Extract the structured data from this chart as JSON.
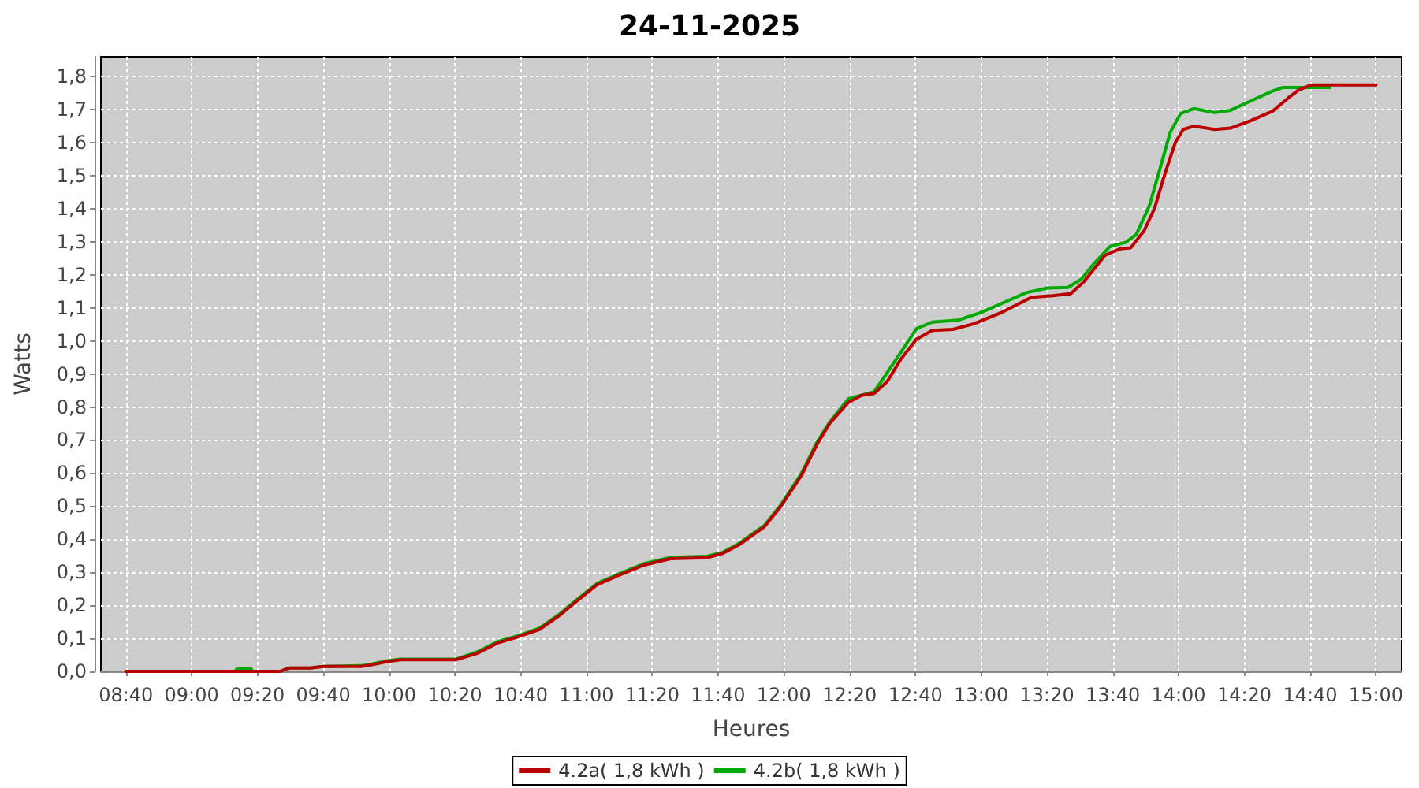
{
  "chart_data": {
    "type": "line",
    "title": "24-11-2025",
    "xlabel": "Heures",
    "ylabel": "Watts",
    "xlim": [
      8.54,
      15.13
    ],
    "ylim": [
      0,
      1.86
    ],
    "xticks": [
      {
        "value": 8.6667,
        "label": "08:40"
      },
      {
        "value": 9,
        "label": "09:00"
      },
      {
        "value": 9.3333,
        "label": "09:20"
      },
      {
        "value": 9.6667,
        "label": "09:40"
      },
      {
        "value": 10,
        "label": "10:00"
      },
      {
        "value": 10.3333,
        "label": "10:20"
      },
      {
        "value": 10.6667,
        "label": "10:40"
      },
      {
        "value": 11,
        "label": "11:00"
      },
      {
        "value": 11.3333,
        "label": "11:20"
      },
      {
        "value": 11.6667,
        "label": "11:40"
      },
      {
        "value": 12,
        "label": "12:00"
      },
      {
        "value": 12.3333,
        "label": "12:20"
      },
      {
        "value": 12.6667,
        "label": "12:40"
      },
      {
        "value": 13,
        "label": "13:00"
      },
      {
        "value": 13.3333,
        "label": "13:20"
      },
      {
        "value": 13.6667,
        "label": "13:40"
      },
      {
        "value": 14,
        "label": "14:00"
      },
      {
        "value": 14.3333,
        "label": "14:20"
      },
      {
        "value": 14.6667,
        "label": "14:40"
      },
      {
        "value": 15,
        "label": "15:00"
      }
    ],
    "yticks": [
      {
        "value": 0,
        "label": "0,0"
      },
      {
        "value": 0.1,
        "label": "0,1"
      },
      {
        "value": 0.2,
        "label": "0,2"
      },
      {
        "value": 0.3,
        "label": "0,3"
      },
      {
        "value": 0.4,
        "label": "0,4"
      },
      {
        "value": 0.5,
        "label": "0,5"
      },
      {
        "value": 0.6,
        "label": "0,6"
      },
      {
        "value": 0.7,
        "label": "0,7"
      },
      {
        "value": 0.8,
        "label": "0,8"
      },
      {
        "value": 0.9,
        "label": "0,9"
      },
      {
        "value": 1.0,
        "label": "1,0"
      },
      {
        "value": 1.1,
        "label": "1,1"
      },
      {
        "value": 1.2,
        "label": "1,2"
      },
      {
        "value": 1.3,
        "label": "1,3"
      },
      {
        "value": 1.4,
        "label": "1,4"
      },
      {
        "value": 1.5,
        "label": "1,5"
      },
      {
        "value": 1.6,
        "label": "1,6"
      },
      {
        "value": 1.7,
        "label": "1,7"
      },
      {
        "value": 1.8,
        "label": "1,8"
      }
    ],
    "grid": true,
    "legend": "bottom",
    "series": [
      {
        "name": "4.2a( 1,8 kWh )",
        "color": "#bb0000",
        "x": [
          8.667,
          9.45,
          9.49,
          9.6,
          9.667,
          9.86,
          9.913,
          9.992,
          10.058,
          10.338,
          10.443,
          10.55,
          10.655,
          10.762,
          10.867,
          10.947,
          11.053,
          11.16,
          11.292,
          11.425,
          11.61,
          11.69,
          11.77,
          11.902,
          11.982,
          12.088,
          12.168,
          12.233,
          12.327,
          12.393,
          12.458,
          12.525,
          12.592,
          12.672,
          12.752,
          12.857,
          12.963,
          13.095,
          13.255,
          13.362,
          13.453,
          13.52,
          13.627,
          13.705,
          13.758,
          13.825,
          13.878,
          13.93,
          13.983,
          14.023,
          14.077,
          14.183,
          14.263,
          14.368,
          14.475,
          14.555,
          14.607,
          14.673,
          15.0
        ],
        "values": [
          0,
          0,
          0.01,
          0.01,
          0.015,
          0.015,
          0.02,
          0.03,
          0.035,
          0.035,
          0.054,
          0.086,
          0.105,
          0.127,
          0.171,
          0.211,
          0.262,
          0.29,
          0.322,
          0.341,
          0.344,
          0.357,
          0.382,
          0.438,
          0.497,
          0.592,
          0.687,
          0.751,
          0.814,
          0.835,
          0.841,
          0.878,
          0.944,
          1.005,
          1.032,
          1.035,
          1.052,
          1.084,
          1.132,
          1.137,
          1.143,
          1.179,
          1.259,
          1.279,
          1.282,
          1.333,
          1.401,
          1.505,
          1.6,
          1.64,
          1.65,
          1.64,
          1.644,
          1.667,
          1.695,
          1.735,
          1.759,
          1.775,
          1.775
        ]
      },
      {
        "name": "4.2b( 1,8 kWh )",
        "color": "#00aa00",
        "x": [
          8.667,
          9.22,
          9.23,
          9.3,
          9.31,
          9.45,
          9.49,
          9.6,
          9.667,
          9.86,
          9.913,
          9.992,
          10.058,
          10.338,
          10.443,
          10.55,
          10.655,
          10.762,
          10.867,
          10.947,
          11.053,
          11.16,
          11.292,
          11.425,
          11.61,
          11.69,
          11.77,
          11.902,
          11.982,
          12.088,
          12.168,
          12.233,
          12.327,
          12.458,
          12.592,
          12.672,
          12.752,
          12.883,
          12.99,
          13.095,
          13.228,
          13.335,
          13.44,
          13.507,
          13.573,
          13.653,
          13.732,
          13.785,
          13.852,
          13.905,
          13.958,
          14.01,
          14.077,
          14.183,
          14.263,
          14.368,
          14.475,
          14.528,
          14.767
        ],
        "values": [
          0,
          0,
          0.008,
          0.008,
          0,
          0,
          0.01,
          0.01,
          0.015,
          0.017,
          0.022,
          0.032,
          0.037,
          0.037,
          0.058,
          0.09,
          0.108,
          0.131,
          0.175,
          0.215,
          0.266,
          0.294,
          0.326,
          0.345,
          0.348,
          0.36,
          0.386,
          0.442,
          0.502,
          0.598,
          0.694,
          0.755,
          0.825,
          0.846,
          0.965,
          1.037,
          1.057,
          1.063,
          1.084,
          1.111,
          1.146,
          1.16,
          1.162,
          1.187,
          1.235,
          1.286,
          1.298,
          1.322,
          1.409,
          1.52,
          1.632,
          1.688,
          1.703,
          1.691,
          1.698,
          1.727,
          1.756,
          1.767,
          1.767
        ]
      }
    ]
  }
}
